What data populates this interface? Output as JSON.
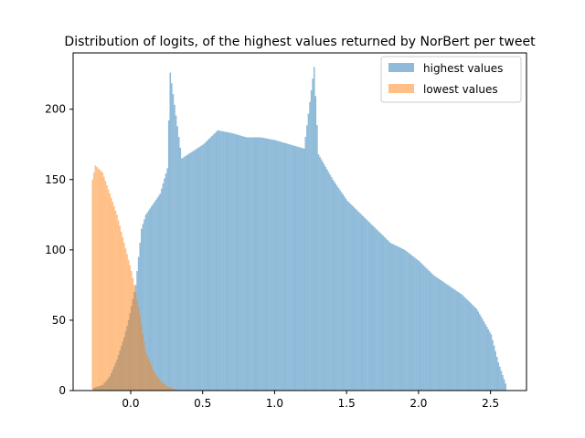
{
  "chart_data": {
    "type": "bar",
    "title": "Distribution of logits, of the highest values returned by NorBert per tweet",
    "xlabel": "",
    "ylabel": "",
    "xlim": [
      -0.4,
      2.75
    ],
    "ylim": [
      0,
      240
    ],
    "xticks": [
      0.0,
      0.5,
      1.0,
      1.5,
      2.0,
      2.5
    ],
    "xtick_labels": [
      "0.0",
      "0.5",
      "1.0",
      "1.5",
      "2.0",
      "2.5"
    ],
    "yticks": [
      0,
      50,
      100,
      150,
      200
    ],
    "ytick_labels": [
      "0",
      "50",
      "100",
      "150",
      "200"
    ],
    "legend_position": "top-right",
    "series": [
      {
        "name": "highest values",
        "color": "#1f77b4",
        "opacity": 0.5,
        "points": [
          [
            -0.26,
            2
          ],
          [
            -0.2,
            4
          ],
          [
            -0.15,
            10
          ],
          [
            -0.1,
            22
          ],
          [
            -0.05,
            38
          ],
          [
            -0.02,
            50
          ],
          [
            0.0,
            60
          ],
          [
            0.03,
            75
          ],
          [
            0.05,
            95
          ],
          [
            0.07,
            115
          ],
          [
            0.1,
            125
          ],
          [
            0.2,
            140
          ],
          [
            0.25,
            158
          ],
          [
            0.27,
            226
          ],
          [
            0.35,
            165
          ],
          [
            0.5,
            175
          ],
          [
            0.6,
            185
          ],
          [
            0.7,
            183
          ],
          [
            0.8,
            180
          ],
          [
            0.9,
            180
          ],
          [
            1.0,
            178
          ],
          [
            1.1,
            175
          ],
          [
            1.2,
            172
          ],
          [
            1.27,
            230
          ],
          [
            1.3,
            168
          ],
          [
            1.4,
            150
          ],
          [
            1.5,
            135
          ],
          [
            1.6,
            125
          ],
          [
            1.7,
            115
          ],
          [
            1.8,
            105
          ],
          [
            1.9,
            100
          ],
          [
            2.0,
            92
          ],
          [
            2.1,
            82
          ],
          [
            2.2,
            75
          ],
          [
            2.3,
            68
          ],
          [
            2.4,
            58
          ],
          [
            2.5,
            40
          ],
          [
            2.55,
            20
          ],
          [
            2.6,
            5
          ]
        ]
      },
      {
        "name": "lowest values",
        "color": "#ff7f0e",
        "opacity": 0.5,
        "points": [
          [
            -0.27,
            150
          ],
          [
            -0.25,
            160
          ],
          [
            -0.2,
            155
          ],
          [
            -0.15,
            140
          ],
          [
            -0.1,
            125
          ],
          [
            -0.05,
            105
          ],
          [
            0.0,
            85
          ],
          [
            0.03,
            70
          ],
          [
            0.05,
            60
          ],
          [
            0.08,
            40
          ],
          [
            0.1,
            28
          ],
          [
            0.15,
            15
          ],
          [
            0.2,
            7
          ],
          [
            0.25,
            3
          ],
          [
            0.3,
            1
          ],
          [
            0.35,
            0
          ]
        ]
      }
    ]
  }
}
